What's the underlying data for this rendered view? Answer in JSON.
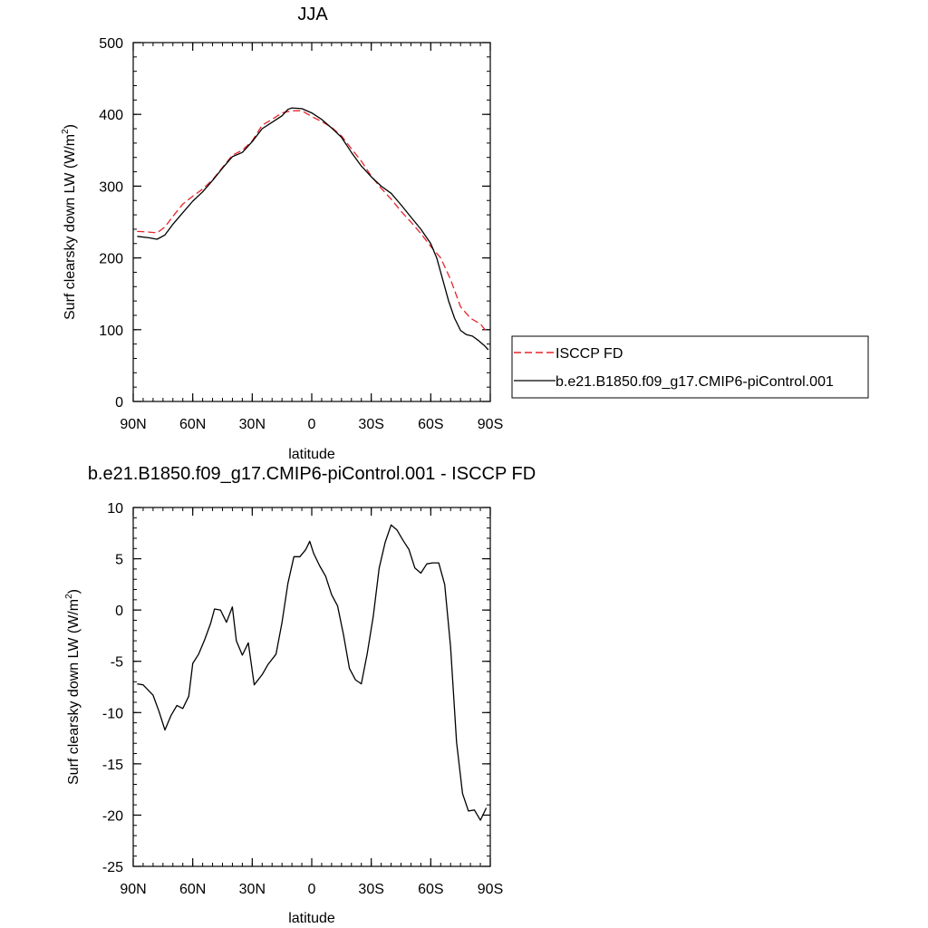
{
  "chart_data": [
    {
      "type": "line",
      "title": "JJA",
      "xlabel": "latitude",
      "ylabel": "Surf clearsky down LW (W/m",
      "ylabel_sup": "2",
      "ylabel_end": ")",
      "xlim": [
        -90,
        90
      ],
      "ylim": [
        0,
        500
      ],
      "xticks": [
        {
          "value": -90,
          "label": "90N"
        },
        {
          "value": -60,
          "label": "60N"
        },
        {
          "value": -30,
          "label": "30N"
        },
        {
          "value": 0,
          "label": "0"
        },
        {
          "value": 30,
          "label": "30S"
        },
        {
          "value": 60,
          "label": "60S"
        },
        {
          "value": 90,
          "label": "90S"
        }
      ],
      "yticks": [
        0,
        100,
        200,
        300,
        400,
        500
      ],
      "series": [
        {
          "name": "ISCCP FD",
          "color": "#e8242b",
          "dash": "dashed",
          "x": [
            -88,
            -82,
            -78,
            -74,
            -70,
            -65,
            -60,
            -55,
            -50,
            -45,
            -40,
            -35,
            -30,
            -25,
            -20,
            -15,
            -10,
            -5,
            0,
            5,
            10,
            15,
            20,
            25,
            30,
            35,
            40,
            45,
            50,
            55,
            60,
            65,
            70,
            75,
            80,
            85,
            88
          ],
          "y": [
            237,
            236,
            235,
            243,
            258,
            275,
            286,
            296,
            309,
            326,
            343,
            350,
            363,
            385,
            393,
            402,
            405,
            405,
            397,
            390,
            382,
            370,
            352,
            335,
            314,
            297,
            282,
            265,
            250,
            234,
            216,
            200,
            170,
            132,
            116,
            108,
            98
          ]
        },
        {
          "name": "b.e21.B1850.f09_g17.CMIP6-piControl.001",
          "color": "#000000",
          "dash": "solid",
          "x": [
            -88,
            -82,
            -78,
            -74,
            -70,
            -65,
            -60,
            -55,
            -50,
            -45,
            -40,
            -35,
            -30,
            -25,
            -20,
            -15,
            -12,
            -10,
            -5,
            0,
            5,
            10,
            15,
            20,
            25,
            30,
            35,
            40,
            45,
            50,
            55,
            60,
            63,
            66,
            69,
            72,
            75,
            78,
            81,
            84,
            87,
            89
          ],
          "y": [
            230,
            228,
            226,
            232,
            247,
            263,
            279,
            292,
            308,
            325,
            341,
            347,
            362,
            380,
            389,
            398,
            407,
            409,
            408,
            402,
            393,
            381,
            368,
            347,
            328,
            313,
            300,
            290,
            274,
            257,
            240,
            220,
            200,
            170,
            140,
            116,
            99,
            93,
            91,
            85,
            78,
            72
          ]
        }
      ]
    },
    {
      "type": "line",
      "title": "b.e21.B1850.f09_g17.CMIP6-piControl.001 - ISCCP FD",
      "xlabel": "latitude",
      "ylabel": "Surf clearsky down LW (W/m",
      "ylabel_sup": "2",
      "ylabel_end": ")",
      "xlim": [
        -90,
        90
      ],
      "ylim": [
        -25,
        10
      ],
      "xticks": [
        {
          "value": -90,
          "label": "90N"
        },
        {
          "value": -60,
          "label": "60N"
        },
        {
          "value": -30,
          "label": "30N"
        },
        {
          "value": 0,
          "label": "0"
        },
        {
          "value": 30,
          "label": "30S"
        },
        {
          "value": 60,
          "label": "60S"
        },
        {
          "value": 90,
          "label": "90S"
        }
      ],
      "yticks": [
        -25,
        -20,
        -15,
        -10,
        -5,
        0,
        5,
        10
      ],
      "series": [
        {
          "color": "#000000",
          "dash": "solid",
          "x": [
            -88,
            -85,
            -80,
            -77,
            -74,
            -71,
            -68,
            -65,
            -62,
            -60,
            -57,
            -54,
            -51,
            -49,
            -46,
            -43,
            -40,
            -38,
            -35,
            -32,
            -29,
            -25,
            -22,
            -18,
            -15,
            -12,
            -9,
            -6,
            -3,
            -1,
            1,
            4,
            7,
            10,
            13,
            16,
            19,
            22,
            25,
            28,
            31,
            34,
            37,
            40,
            43,
            46,
            49,
            52,
            55,
            58,
            61,
            64,
            67,
            70,
            73,
            76,
            79,
            82,
            85,
            88
          ],
          "y": [
            -7.2,
            -7.3,
            -8.3,
            -9.9,
            -11.7,
            -10.3,
            -9.3,
            -9.6,
            -8.4,
            -5.2,
            -4.3,
            -2.9,
            -1.3,
            0.1,
            0.0,
            -1.2,
            0.3,
            -3.0,
            -4.4,
            -3.2,
            -7.3,
            -6.3,
            -5.3,
            -4.3,
            -1.2,
            2.6,
            5.2,
            5.2,
            5.9,
            6.7,
            5.5,
            4.3,
            3.3,
            1.5,
            0.4,
            -2.4,
            -5.7,
            -6.8,
            -7.2,
            -4.2,
            -0.6,
            4.1,
            6.6,
            8.3,
            7.8,
            6.8,
            5.9,
            4.1,
            3.6,
            4.5,
            4.6,
            4.6,
            2.5,
            -3.6,
            -12.9,
            -17.9,
            -19.6,
            -19.5,
            -20.5,
            -19.3
          ]
        }
      ]
    }
  ]
}
